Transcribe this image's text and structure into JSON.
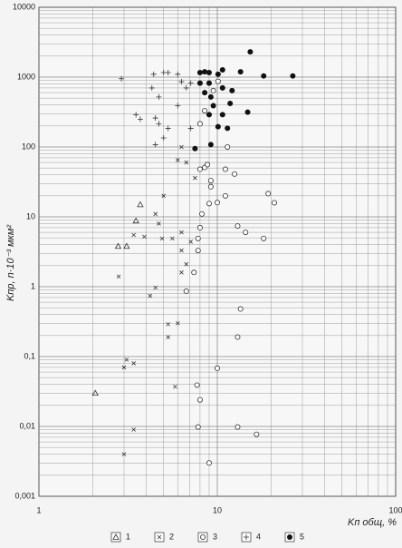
{
  "chart_data": {
    "type": "scatter",
    "x_label": "Kп общ, %",
    "y_label": "Kпр, n·10⁻³ мкм²",
    "xlog": true,
    "ylog": true,
    "grid": true,
    "xlim": [
      1,
      100
    ],
    "ylim": [
      0.001,
      10000
    ],
    "xticks": [
      1,
      10,
      100
    ],
    "yticks": [
      10000,
      1000,
      100,
      10,
      1,
      {
        "value": 0.1,
        "label": "0,1"
      },
      {
        "value": 0.01,
        "label": "0,01"
      },
      {
        "value": 0.001,
        "label": "0,001"
      }
    ],
    "xminorticks": [
      2,
      3,
      4,
      5,
      6,
      7,
      8,
      9,
      20,
      30,
      40,
      50,
      60,
      70,
      80,
      90
    ],
    "yminorticks": [
      0.002,
      0.003,
      0.004,
      0.005,
      0.006,
      0.007,
      0.008,
      0.009,
      0.02,
      0.03,
      0.04,
      0.05,
      0.06,
      0.07,
      0.08,
      0.09,
      0.2,
      0.3,
      0.4,
      0.5,
      0.6,
      0.7,
      0.8,
      0.9,
      2,
      3,
      4,
      5,
      6,
      7,
      8,
      9,
      20,
      30,
      40,
      50,
      60,
      70,
      80,
      90,
      200,
      300,
      400,
      500,
      600,
      700,
      800,
      900,
      2000,
      3000,
      4000,
      5000,
      6000,
      7000,
      8000,
      9000
    ],
    "legend": "bottom",
    "series": [
      {
        "name": "1",
        "marker": "triangle",
        "color": "#333",
        "x": [
          2.07,
          2.78,
          3.1,
          3.5,
          3.7
        ],
        "values": [
          0.03,
          3.8,
          3.8,
          8.8,
          15
        ]
      },
      {
        "name": "2",
        "marker": "cross",
        "color": "#333",
        "x": [
          2.8,
          3.1,
          3.0,
          3.4,
          3.4,
          3.0,
          3.4,
          3.9,
          4.2,
          4.5,
          4.7,
          4.5,
          5.0,
          4.9,
          5.3,
          5.3,
          6.0,
          5.6,
          6.0,
          6.3,
          6.7,
          5.8,
          6.3,
          6.3,
          6.7,
          7.1,
          7.5,
          6.3
        ],
        "values": [
          1.4,
          0.09,
          0.07,
          0.08,
          0.009,
          0.004,
          5.5,
          5.2,
          0.74,
          0.97,
          8,
          11,
          20,
          4.9,
          0.29,
          0.19,
          0.3,
          4.9,
          65,
          100,
          60,
          0.037,
          6,
          3.3,
          2.1,
          4.4,
          36,
          1.6
        ]
      },
      {
        "name": "3",
        "marker": "circle",
        "color": "#333",
        "x": [
          9.0,
          6.7,
          7.4,
          7.8,
          7.8,
          8.0,
          8.2,
          8.0,
          8.5,
          8.8,
          9.2,
          9.2,
          10,
          8.0,
          8.5,
          9.5,
          10.1,
          8.0,
          7.7,
          7.8,
          9.0,
          10,
          11.1,
          11.1,
          11.4,
          12.5,
          13,
          13,
          13.5,
          13,
          16.6,
          14.4,
          18.2,
          19.3,
          20.9
        ],
        "values": [
          15.5,
          0.86,
          1.6,
          3.3,
          4.9,
          7,
          11,
          48,
          51,
          56,
          33,
          27,
          16,
          215,
          330,
          640,
          870,
          0.024,
          0.039,
          0.0098,
          0.003,
          0.068,
          48,
          20,
          100,
          41,
          7.4,
          0.19,
          0.48,
          0.0098,
          0.0077,
          6,
          4.9,
          21.5,
          15.9
        ]
      },
      {
        "name": "4",
        "marker": "plus",
        "color": "#333",
        "x": [
          2.9,
          3.5,
          3.7,
          4.3,
          4.4,
          5.0,
          5.3,
          6.0,
          6.3,
          7.1,
          4.7,
          4.5,
          4.5,
          5.0,
          5.3,
          6.0,
          6.7,
          7.1,
          4.7
        ],
        "values": [
          950,
          290,
          250,
          700,
          1100,
          1160,
          1160,
          1100,
          860,
          820,
          520,
          260,
          108,
          135,
          185,
          390,
          700,
          185,
          215
        ]
      },
      {
        "name": "5",
        "marker": "dot",
        "color": "#111",
        "x": [
          7.5,
          8.0,
          8.5,
          9.0,
          8.0,
          9.0,
          8.5,
          10.1,
          10.7,
          10.7,
          12.1,
          13.5,
          15.3,
          18.2,
          26.5,
          14.8,
          10.7,
          9.5,
          9.0,
          9.2,
          11.8,
          10.1,
          9.2,
          11.4
        ],
        "values": [
          95,
          1160,
          1190,
          1160,
          820,
          820,
          600,
          1100,
          1270,
          700,
          640,
          1190,
          2300,
          1040,
          1040,
          315,
          290,
          390,
          290,
          520,
          420,
          195,
          108,
          185
        ]
      }
    ]
  }
}
